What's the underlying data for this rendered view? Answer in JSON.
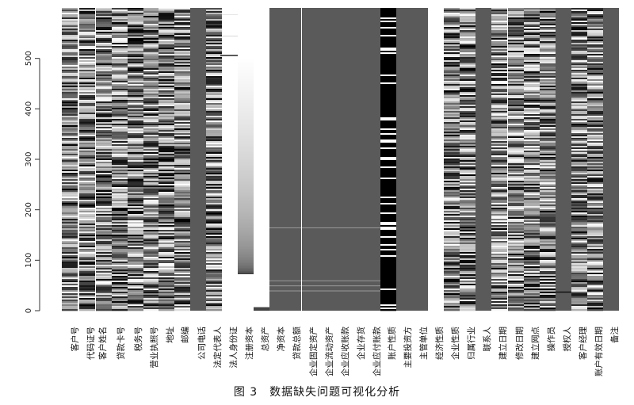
{
  "caption": "图 3　数据缺失问题可视化分析",
  "chart_data": {
    "type": "heatmap",
    "title": "",
    "xlabel": "",
    "ylabel": "",
    "ylim": [
      0,
      600
    ],
    "y_ticks": [
      0,
      100,
      200,
      300,
      400,
      500
    ],
    "grid": false,
    "legend": "none",
    "colormap": [
      "#000000",
      "#ffffff"
    ],
    "columns": [
      {
        "label": "客户号",
        "pattern": "noise"
      },
      {
        "label": "代码证号",
        "pattern": "noise"
      },
      {
        "label": "客户姓名",
        "pattern": "noise"
      },
      {
        "label": "贷款卡号",
        "pattern": "noise"
      },
      {
        "label": "税务号",
        "pattern": "noise"
      },
      {
        "label": "营业执照号",
        "pattern": "noise"
      },
      {
        "label": "地址",
        "pattern": "noise"
      },
      {
        "label": "邮编",
        "pattern": "noise"
      },
      {
        "label": "公司电话",
        "pattern": "missing"
      },
      {
        "label": "法定代表人",
        "pattern": "noise"
      },
      {
        "label": "法人身份证",
        "pattern": "sparse"
      },
      {
        "label": "注册资本",
        "pattern": "gradient"
      },
      {
        "label": "总资产",
        "pattern": "sparse-low"
      },
      {
        "label": "净资本",
        "pattern": "missing"
      },
      {
        "label": "贷款总额",
        "pattern": "missing"
      },
      {
        "label": "企业固定资产",
        "pattern": "missing"
      },
      {
        "label": "企业流动资产",
        "pattern": "missing"
      },
      {
        "label": "企业应收账款",
        "pattern": "missing"
      },
      {
        "label": "企业存货",
        "pattern": "missing"
      },
      {
        "label": "企业应付账款",
        "pattern": "missing"
      },
      {
        "label": "账户性质",
        "pattern": "binary"
      },
      {
        "label": "主要投资方",
        "pattern": "missing"
      },
      {
        "label": "主管单位",
        "pattern": "missing"
      },
      {
        "label": "经济性质",
        "pattern": "blank"
      },
      {
        "label": "企业性质",
        "pattern": "noise"
      },
      {
        "label": "归属行业",
        "pattern": "noise"
      },
      {
        "label": "联系人",
        "pattern": "missing"
      },
      {
        "label": "建立日期",
        "pattern": "noise"
      },
      {
        "label": "修改日期",
        "pattern": "noise"
      },
      {
        "label": "建立网点",
        "pattern": "noise"
      },
      {
        "label": "操作员",
        "pattern": "noise"
      },
      {
        "label": "授权人",
        "pattern": "missing"
      },
      {
        "label": "客户经理",
        "pattern": "noise"
      },
      {
        "label": "账户有效日期",
        "pattern": "noise"
      },
      {
        "label": "备注",
        "pattern": "missing"
      }
    ],
    "values_note": "per-row data values are not legible at this resolution",
    "colors": {
      "missing": "#5a5a5a",
      "background": "#ffffff",
      "axis": "#333333"
    }
  }
}
